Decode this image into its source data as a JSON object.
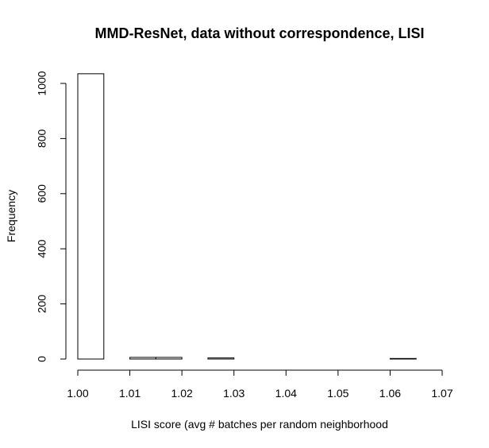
{
  "chart_data": {
    "type": "bar",
    "title": "MMD-ResNet, data without correspondence, LISI",
    "xlabel": "LISI score (avg # batches per random neighborhood",
    "ylabel": "Frequency",
    "xlim": [
      1.0,
      1.07
    ],
    "ylim": [
      0,
      1000
    ],
    "x_ticks": [
      1.0,
      1.01,
      1.02,
      1.03,
      1.04,
      1.05,
      1.06,
      1.07
    ],
    "x_tick_labels": [
      "1.00",
      "1.01",
      "1.02",
      "1.03",
      "1.04",
      "1.05",
      "1.06",
      "1.07"
    ],
    "y_ticks": [
      0,
      200,
      400,
      600,
      800,
      1000
    ],
    "y_tick_labels": [
      "0",
      "200",
      "400",
      "600",
      "800",
      "1000"
    ],
    "bins": [
      {
        "start": 1.0,
        "end": 1.005,
        "count": 1035
      },
      {
        "start": 1.005,
        "end": 1.01,
        "count": 0
      },
      {
        "start": 1.01,
        "end": 1.015,
        "count": 6
      },
      {
        "start": 1.015,
        "end": 1.02,
        "count": 6
      },
      {
        "start": 1.02,
        "end": 1.025,
        "count": 0
      },
      {
        "start": 1.025,
        "end": 1.03,
        "count": 4
      },
      {
        "start": 1.03,
        "end": 1.035,
        "count": 0
      },
      {
        "start": 1.035,
        "end": 1.04,
        "count": 0
      },
      {
        "start": 1.04,
        "end": 1.045,
        "count": 0
      },
      {
        "start": 1.045,
        "end": 1.05,
        "count": 0
      },
      {
        "start": 1.05,
        "end": 1.055,
        "count": 0
      },
      {
        "start": 1.055,
        "end": 1.06,
        "count": 0
      },
      {
        "start": 1.06,
        "end": 1.065,
        "count": 2
      },
      {
        "start": 1.065,
        "end": 1.07,
        "count": 0
      }
    ],
    "grid": false,
    "colors": {
      "bar_fill": "#ffffff",
      "bar_stroke": "#000000",
      "axis": "#000000",
      "text": "#000000",
      "background": "#ffffff"
    }
  }
}
